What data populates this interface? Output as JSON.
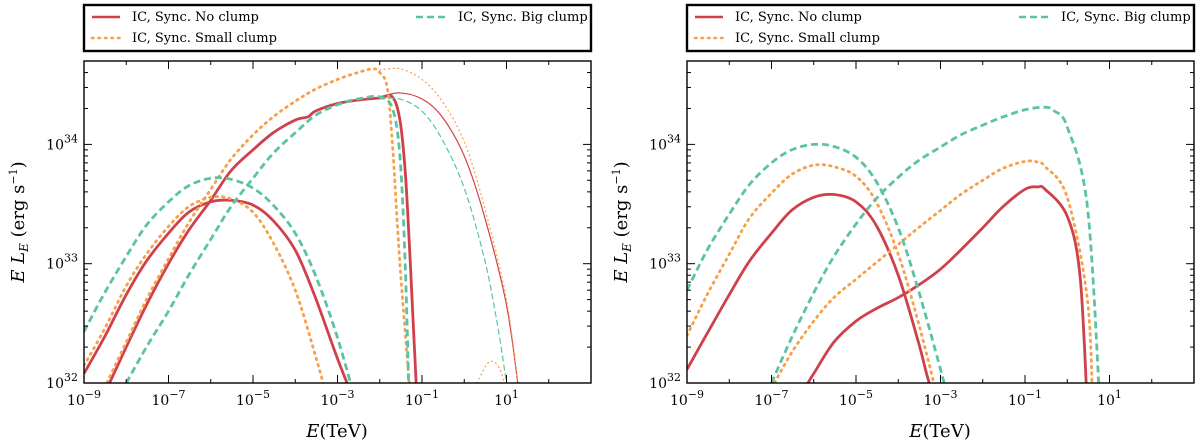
{
  "colors": {
    "no_clump": "#d0404b",
    "small_clump": "#f7a04a",
    "big_clump": "#5cc3a2"
  },
  "chart_data": [
    {
      "type": "line",
      "panel": "left",
      "xlabel": "E(TeV)",
      "ylabel": "E L_E (erg s^-1)",
      "xscale": "log",
      "yscale": "log",
      "xlim": [
        1e-09,
        1000.0
      ],
      "ylim": [
        1e+32,
        5e+34
      ],
      "x_tick_labels": [
        "10^-9",
        "10^-7",
        "10^-5",
        "10^-3",
        "10^-1",
        "10^1"
      ],
      "y_tick_labels": [
        "10^32",
        "10^33",
        "10^34"
      ],
      "grid": false,
      "legend_position": "above-plot",
      "legend": [
        "IC, Sync. No clump",
        "IC, Sync. Small clump",
        "IC, Sync. Big clump"
      ],
      "series": [
        {
          "name": "IC, Sync. No clump",
          "style": "solid",
          "width": "thick",
          "color": "#d0404b",
          "x": [
            1e-09,
            3e-09,
            1e-08,
            3e-08,
            1e-07,
            3e-07,
            1e-06,
            3e-06,
            1e-05,
            3e-05,
            0.0001,
            0.0003,
            0.001,
            0.003
          ],
          "y": [
            1.2e+32,
            2.4e+32,
            5.5e+32,
            1.05e+33,
            1.8e+33,
            2.7e+33,
            3.3e+33,
            3.4e+33,
            3.1e+33,
            2.3e+33,
            1.3e+33,
            5.2e+32,
            1.6e+32,
            6e+31
          ]
        },
        {
          "name": "IC, Sync. No clump",
          "style": "solid",
          "width": "thick",
          "color": "#d0404b",
          "x": [
            3e-09,
            1e-08,
            3e-08,
            1e-07,
            3e-07,
            1e-06,
            3e-06,
            1e-05,
            3e-05,
            0.0001,
            0.0002,
            0.0003,
            0.001,
            0.003,
            0.01,
            0.02,
            0.03,
            0.04,
            0.05,
            0.06,
            0.08
          ],
          "y": [
            8e+31,
            2e+32,
            4.5e+32,
            1e+33,
            1.9e+33,
            3.4e+33,
            6e+33,
            9e+33,
            1.25e+34,
            1.6e+34,
            1.7e+34,
            1.9e+34,
            2.2e+34,
            2.35e+34,
            2.45e+34,
            2.5e+34,
            1.6e+34,
            6e+33,
            1.5e+33,
            4e+32,
            5e+31
          ]
        },
        {
          "name": "IC, Sync. No clump",
          "style": "solid",
          "width": "thin",
          "color": "#d0404b",
          "x": [
            0.01,
            0.03,
            0.1,
            0.3,
            1,
            3,
            10,
            20
          ],
          "y": [
            2.5e+34,
            2.7e+34,
            2.4e+34,
            1.7e+34,
            8e+33,
            2.5e+33,
            4.5e+32,
            8e+31
          ]
        },
        {
          "name": "IC, Sync. Small clump",
          "style": "dotted",
          "width": "thick",
          "color": "#f7a04a",
          "x": [
            1e-09,
            3e-09,
            1e-08,
            3e-08,
            1e-07,
            3e-07,
            1e-06,
            3e-06,
            1e-05,
            3e-05,
            0.0001,
            0.0003,
            0.0006
          ],
          "y": [
            1.4e+32,
            2.8e+32,
            6.5e+32,
            1.2e+33,
            2.05e+33,
            3e+33,
            3.6e+33,
            3.5e+33,
            2.7e+33,
            1.5e+33,
            6e+32,
            1.7e+32,
            7e+31
          ]
        },
        {
          "name": "IC, Sync. Small clump",
          "style": "dotted",
          "width": "thick",
          "color": "#f7a04a",
          "x": [
            3e-09,
            1e-08,
            3e-08,
            1e-07,
            3e-07,
            1e-06,
            3e-06,
            1e-05,
            3e-05,
            0.0001,
            0.0003,
            0.001,
            0.003,
            0.007,
            0.01,
            0.015,
            0.02,
            0.03,
            0.05
          ],
          "y": [
            9e+31,
            2.2e+32,
            5e+32,
            1.1e+33,
            2.2e+33,
            4.2e+33,
            7.5e+33,
            1.2e+34,
            1.7e+34,
            2.3e+34,
            2.9e+34,
            3.5e+34,
            4e+34,
            4.3e+34,
            4e+34,
            3e+34,
            1e+34,
            1e+33,
            1e+32
          ]
        },
        {
          "name": "IC, Sync. Small clump",
          "style": "dotted",
          "width": "thin",
          "color": "#f7a04a",
          "x": [
            0.01,
            0.03,
            0.1,
            0.3,
            1,
            3,
            10,
            20
          ],
          "y": [
            4.2e+34,
            4.3e+34,
            3.5e+34,
            2.3e+34,
            1.05e+34,
            3e+33,
            5e+32,
            8e+31
          ]
        },
        {
          "name": "IC, Sync. Small clump",
          "style": "dotted",
          "width": "thin",
          "color": "#f7a04a",
          "x": [
            2,
            3.5,
            5,
            7,
            9
          ],
          "y": [
            1e+32,
            1.45e+32,
            1.5e+32,
            1.3e+32,
            1e+32
          ]
        },
        {
          "name": "IC, Sync. Big clump",
          "style": "dashed",
          "width": "thick",
          "color": "#5cc3a2",
          "x": [
            1e-09,
            3e-09,
            1e-08,
            3e-08,
            1e-07,
            3e-07,
            1e-06,
            3e-06,
            1e-05,
            3e-05,
            0.0001,
            0.0003,
            0.001,
            0.003
          ],
          "y": [
            2.7e+32,
            5.6e+32,
            1.15e+33,
            2.1e+33,
            3.3e+33,
            4.5e+33,
            5.2e+33,
            5.1e+33,
            4.3e+33,
            3.1e+33,
            1.8e+33,
            8e+32,
            2.4e+32,
            6e+31
          ]
        },
        {
          "name": "IC, Sync. Big clump",
          "style": "dashed",
          "width": "thick",
          "color": "#5cc3a2",
          "x": [
            1e-08,
            3e-08,
            1e-07,
            3e-07,
            1e-06,
            3e-06,
            1e-05,
            3e-05,
            0.0001,
            0.0003,
            0.001,
            0.003,
            0.01,
            0.02,
            0.03,
            0.04,
            0.05
          ],
          "y": [
            1e+32,
            2e+32,
            4e+32,
            8e+32,
            1.6e+33,
            3e+33,
            5.2e+33,
            8.4e+33,
            1.25e+34,
            1.75e+34,
            2.15e+34,
            2.4e+34,
            2.5e+34,
            2e+34,
            8e+33,
            1e+33,
            6e+31
          ]
        },
        {
          "name": "IC, Sync. Big clump",
          "style": "dashed",
          "width": "thin",
          "color": "#5cc3a2",
          "x": [
            0.01,
            0.03,
            0.1,
            0.3,
            1,
            3,
            6,
            10
          ],
          "y": [
            2.4e+34,
            2.4e+34,
            1.9e+34,
            1.1e+34,
            4.3e+33,
            1.1e+33,
            3.2e+32,
            1e+32
          ]
        }
      ]
    },
    {
      "type": "line",
      "panel": "right",
      "xlabel": "E(TeV)",
      "ylabel": "E L_E (erg s^-1)",
      "xscale": "log",
      "yscale": "log",
      "xlim": [
        1e-09,
        1000.0
      ],
      "ylim": [
        1e+32,
        5e+34
      ],
      "x_tick_labels": [
        "10^-9",
        "10^-7",
        "10^-5",
        "10^-3",
        "10^-1",
        "10^1"
      ],
      "y_tick_labels": [
        "10^32",
        "10^33",
        "10^34"
      ],
      "grid": false,
      "legend_position": "above-plot",
      "legend": [
        "IC, Sync. No clump",
        "IC, Sync. Small clump",
        "IC, Sync. Big clump"
      ],
      "series": [
        {
          "name": "IC, Sync. No clump",
          "style": "solid",
          "width": "thick",
          "color": "#d0404b",
          "x": [
            1e-09,
            3e-09,
            1e-08,
            3e-08,
            1e-07,
            3e-07,
            1e-06,
            3e-06,
            1e-05,
            3e-05,
            0.0001,
            0.0003,
            0.0005,
            0.001
          ],
          "y": [
            1.3e+32,
            2.6e+32,
            5.5e+32,
            1.05e+33,
            1.8e+33,
            2.8e+33,
            3.6e+33,
            3.8e+33,
            3.3e+33,
            2.1e+33,
            8e+32,
            2.2e+32,
            1.1e+32,
            5e+31
          ]
        },
        {
          "name": "IC, Sync. No clump",
          "style": "solid",
          "width": "thick",
          "color": "#d0404b",
          "x": [
            3e-07,
            1e-06,
            3e-06,
            1e-05,
            3e-05,
            0.0001,
            0.0003,
            0.001,
            0.003,
            0.01,
            0.03,
            0.1,
            0.2,
            0.3,
            1,
            2,
            3
          ],
          "y": [
            6e+31,
            1.2e+32,
            2.2e+32,
            3.3e+32,
            4.2e+32,
            5.2e+32,
            6.6e+32,
            9e+32,
            1.3e+33,
            2e+33,
            3e+33,
            4.2e+33,
            4.4e+33,
            4.2e+33,
            2.5e+33,
            8e+32,
            6e+31
          ]
        },
        {
          "name": "IC, Sync. Small clump",
          "style": "dotted",
          "width": "thick",
          "color": "#f7a04a",
          "x": [
            1e-09,
            3e-09,
            1e-08,
            3e-08,
            1e-07,
            3e-07,
            1e-06,
            3e-06,
            1e-05,
            3e-05,
            0.0001,
            0.0003,
            0.001
          ],
          "y": [
            2.5e+32,
            5.5e+32,
            1.2e+33,
            2.4e+33,
            3.9e+33,
            5.6e+33,
            6.7e+33,
            6.5e+33,
            5.4e+33,
            3.3e+33,
            1.2e+33,
            3.2e+32,
            6e+31
          ]
        },
        {
          "name": "IC, Sync. Small clump",
          "style": "dotted",
          "width": "thick",
          "color": "#f7a04a",
          "x": [
            1e-07,
            3e-07,
            1e-06,
            3e-06,
            1e-05,
            3e-05,
            0.0001,
            0.0003,
            0.001,
            0.003,
            0.01,
            0.03,
            0.1,
            0.2,
            0.3,
            1,
            3,
            4
          ],
          "y": [
            9e+31,
            1.8e+32,
            3.3e+32,
            5.2e+32,
            7.4e+32,
            1.02e+33,
            1.45e+33,
            2e+33,
            2.8e+33,
            3.8e+33,
            5e+33,
            6.3e+33,
            7.2e+33,
            7.1e+33,
            6.5e+33,
            3.6e+33,
            5e+32,
            6e+31
          ]
        },
        {
          "name": "IC, Sync. Big clump",
          "style": "dashed",
          "width": "thick",
          "color": "#5cc3a2",
          "x": [
            1e-09,
            3e-09,
            1e-08,
            3e-08,
            1e-07,
            3e-07,
            1e-06,
            3e-06,
            1e-05,
            3e-05,
            0.0001,
            0.0003,
            0.001,
            0.002
          ],
          "y": [
            6e+32,
            1.3e+33,
            2.6e+33,
            4.6e+33,
            7e+33,
            9e+33,
            1e+34,
            9.6e+33,
            7.8e+33,
            4.9e+33,
            2e+33,
            6e+32,
            1.3e+32,
            5e+31
          ]
        },
        {
          "name": "IC, Sync. Big clump",
          "style": "dashed",
          "width": "thick",
          "color": "#5cc3a2",
          "x": [
            1e-07,
            3e-07,
            1e-06,
            3e-06,
            1e-05,
            3e-05,
            0.0001,
            0.0003,
            0.001,
            0.003,
            0.01,
            0.03,
            0.1,
            0.3,
            0.5,
            1,
            3,
            6
          ],
          "y": [
            1e+32,
            2.4e+32,
            5.7e+32,
            1.15e+33,
            2.15e+33,
            3.5e+33,
            5.3e+33,
            7.3e+33,
            9.5e+33,
            1.2e+34,
            1.45e+34,
            1.7e+34,
            1.95e+34,
            2.05e+34,
            1.9e+34,
            1.4e+34,
            3e+33,
            6e+31
          ]
        }
      ]
    }
  ],
  "legend_labels": {
    "no_clump": "IC, Sync. No clump",
    "small_clump": "IC, Sync. Small clump",
    "big_clump": "IC, Sync. Big clump"
  },
  "axis_text": {
    "x_italic": "E",
    "x_rest": "(TeV)",
    "y_E": "E",
    "y_L": "L",
    "y_sub": "E",
    "y_unit_open": "(erg s",
    "y_unit_exp": "−1",
    "y_unit_close": ")",
    "tick_base": "10"
  },
  "x_ticks": [
    {
      "value": 1e-09,
      "exp": "−9"
    },
    {
      "value": 1e-07,
      "exp": "−7"
    },
    {
      "value": 1e-05,
      "exp": "−5"
    },
    {
      "value": 0.001,
      "exp": "−3"
    },
    {
      "value": 0.1,
      "exp": "−1"
    },
    {
      "value": 10,
      "exp": "1"
    }
  ],
  "y_ticks": [
    {
      "value": 1e+32,
      "exp": "32"
    },
    {
      "value": 1e+33,
      "exp": "33"
    },
    {
      "value": 1e+34,
      "exp": "34"
    }
  ]
}
